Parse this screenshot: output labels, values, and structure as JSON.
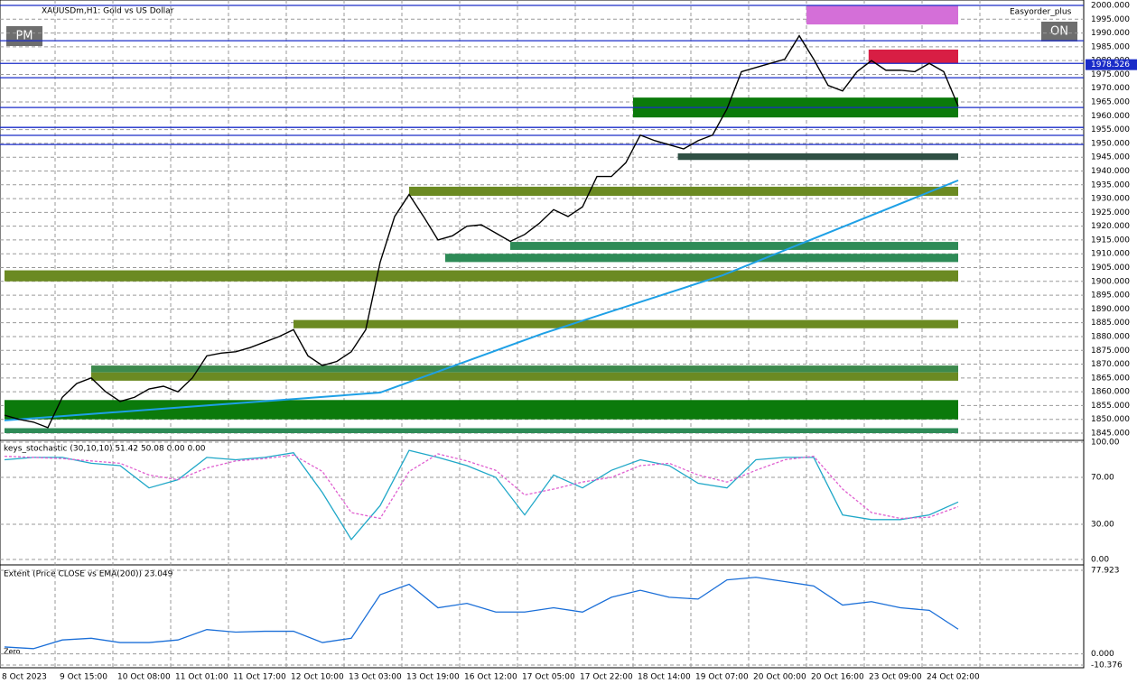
{
  "header": {
    "symbol": "XAUUSDm,H1:  Gold vs US Dollar",
    "indicator": "Easyorder_plus",
    "buttons": [
      "PM",
      "ON"
    ],
    "zero_label": "Zero"
  },
  "time_axis_labels": [
    "8 Oct 2023",
    "9 Oct 15:00",
    "10 Oct 08:00",
    "11 Oct 01:00",
    "11 Oct 17:00",
    "12 Oct 10:00",
    "13 Oct 03:00",
    "13 Oct 19:00",
    "16 Oct 12:00",
    "17 Oct 05:00",
    "17 Oct 22:00",
    "18 Oct 14:00",
    "19 Oct 07:00",
    "20 Oct 00:00",
    "20 Oct 16:00",
    "23 Oct 09:00",
    "24 Oct 02:00"
  ],
  "chart_data": [
    {
      "type": "line",
      "title": "XAUUSDm,H1",
      "grid": true,
      "ylim": [
        1845,
        2000
      ],
      "yticks": [
        {
          "value": 2000,
          "label": "2000.000"
        },
        {
          "value": 1995,
          "label": "1995.000"
        },
        {
          "value": 1990,
          "label": "1990.000"
        },
        {
          "value": 1985,
          "label": "1985.000"
        },
        {
          "value": 1980,
          "label": "1980.000"
        },
        {
          "value": 1975,
          "label": "1975.000"
        },
        {
          "value": 1970,
          "label": "1970.000"
        },
        {
          "value": 1965,
          "label": "1965.000"
        },
        {
          "value": 1960,
          "label": "1960.000"
        },
        {
          "value": 1955,
          "label": "1955.000"
        },
        {
          "value": 1950,
          "label": "1950.000"
        },
        {
          "value": 1945,
          "label": "1945.000"
        },
        {
          "value": 1940,
          "label": "1940.000"
        },
        {
          "value": 1935,
          "label": "1935.000"
        },
        {
          "value": 1930,
          "label": "1930.000"
        },
        {
          "value": 1925,
          "label": "1925.000"
        },
        {
          "value": 1920,
          "label": "1920.000"
        },
        {
          "value": 1915,
          "label": "1915.000"
        },
        {
          "value": 1910,
          "label": "1910.000"
        },
        {
          "value": 1905,
          "label": "1905.000"
        },
        {
          "value": 1900,
          "label": "1900.000"
        },
        {
          "value": 1895,
          "label": "1895.000"
        },
        {
          "value": 1890,
          "label": "1890.000"
        },
        {
          "value": 1885,
          "label": "1885.000"
        },
        {
          "value": 1880,
          "label": "1880.000"
        },
        {
          "value": 1875,
          "label": "1875.000"
        },
        {
          "value": 1870,
          "label": "1870.000"
        },
        {
          "value": 1865,
          "label": "1865.000"
        },
        {
          "value": 1860,
          "label": "1860.000"
        },
        {
          "value": 1855,
          "label": "1855.000"
        },
        {
          "value": 1850,
          "label": "1850.000"
        },
        {
          "value": 1845,
          "label": "1845.000"
        }
      ],
      "current_price": 1978.526,
      "hlines": [
        2000,
        1987.2,
        1979,
        1973.8,
        1963,
        1955.8,
        1952.9,
        1949.6
      ],
      "series": [
        {
          "color": "#000000",
          "values": [
            1851.5,
            1850,
            1849,
            1847,
            1858,
            1863,
            1865,
            1860,
            1856.5,
            1858,
            1861,
            1862,
            1860,
            1865,
            1873,
            1874,
            1874.5,
            1876,
            1878,
            1880,
            1882.5,
            1873,
            1869.5,
            1871,
            1874.5,
            1882.5,
            1907,
            1923.5,
            1931.5,
            1923.5,
            1915,
            1916.5,
            1920,
            1920.5,
            1917.5,
            1914.5,
            1917,
            1921,
            1926,
            1923.5,
            1927,
            1938,
            1938,
            1943,
            1953,
            1951,
            1949.5,
            1948,
            1951,
            1953,
            1962.5,
            1976,
            1977.5,
            1979,
            1980.5,
            1989,
            1980.5,
            1971,
            1969,
            1976,
            1980,
            1976.5,
            1976.5,
            1976,
            1979,
            1976,
            1963.5
          ]
        }
      ],
      "ema": {
        "color": "#1ea0e6",
        "x": [
          0,
          26,
          37.2,
          49.7,
          66
        ],
        "values": [
          1849.6,
          1859.7,
          1881,
          1902.2,
          1936.6
        ]
      },
      "zones": [
        {
          "start": 55.5,
          "lo": 1993.1,
          "hi": 2000,
          "color": "#d46fd8"
        },
        {
          "start": 59.8,
          "lo": 1979,
          "hi": 1984,
          "color": "#d81e44"
        },
        {
          "start": 43.5,
          "lo": 1959.4,
          "hi": 1966.6,
          "color": "#0b7a0b"
        },
        {
          "start": 46.6,
          "lo": 1944,
          "hi": 1946.4,
          "color": "#2f5044"
        },
        {
          "start": 28,
          "lo": 1931,
          "hi": 1934.3,
          "color": "#6b8a22"
        },
        {
          "start": 35,
          "lo": 1911.4,
          "hi": 1914.3,
          "color": "#2e8b57"
        },
        {
          "start": 30.5,
          "lo": 1907,
          "hi": 1910,
          "color": "#2e8b57"
        },
        {
          "start": 0,
          "lo": 1900,
          "hi": 1904,
          "color": "#6b8a22"
        },
        {
          "start": 20,
          "lo": 1883,
          "hi": 1886,
          "color": "#6b8a22"
        },
        {
          "start": 6,
          "lo": 1867,
          "hi": 1869.5,
          "color": "#3d8a4d"
        },
        {
          "start": 6,
          "lo": 1864,
          "hi": 1867,
          "color": "#6b8a22"
        },
        {
          "start": 0,
          "lo": 1850,
          "hi": 1857,
          "color": "#0b7a0b"
        },
        {
          "start": 0,
          "lo": 1845,
          "hi": 1846.8,
          "color": "#2e8b57"
        }
      ]
    },
    {
      "type": "line",
      "title": "keys_stochastic (30,10,10) 51.42 50.08 0.00 0.00",
      "ylim": [
        0,
        100
      ],
      "yticks": [
        {
          "value": 100,
          "label": "100.00"
        },
        {
          "value": 70,
          "label": "70.00"
        },
        {
          "value": 30,
          "label": "30.00"
        },
        {
          "value": 0,
          "label": "0.00"
        }
      ],
      "series": [
        {
          "color": "#20a8c8",
          "values": [
            85,
            87,
            87,
            82,
            80,
            61,
            68,
            87,
            85,
            87,
            91,
            57,
            17,
            46,
            93,
            87,
            80,
            70,
            38,
            72,
            61,
            76,
            85,
            80,
            65,
            61,
            85,
            87,
            87,
            38,
            34,
            34,
            38,
            49
          ]
        },
        {
          "color": "#e060d0",
          "values": [
            88,
            87,
            86,
            84,
            82,
            72,
            68,
            78,
            84,
            86,
            89,
            75,
            40,
            35,
            75,
            90,
            84,
            76,
            55,
            60,
            66,
            70,
            80,
            82,
            72,
            66,
            76,
            85,
            88,
            60,
            40,
            35,
            36,
            45
          ]
        }
      ]
    },
    {
      "type": "line",
      "title": "Extent (Price CLOSE vs EMA(200)) 23.049",
      "ylim": [
        -10.376,
        77.923
      ],
      "yticks": [
        77.923,
        {
          "value": 0,
          "label": "0.000"
        },
        -10.376
      ],
      "series": [
        {
          "color": "#1b6fd8",
          "values": [
            6.5,
            4.9,
            13,
            14.6,
            10.6,
            10.6,
            13,
            22.7,
            20.3,
            21.1,
            21.1,
            10.6,
            14.6,
            55.2,
            64.9,
            43,
            47.1,
            39,
            39,
            43,
            39,
            52.8,
            59.3,
            52.8,
            51.1,
            69,
            71.4,
            67.4,
            63.3,
            45.5,
            48.7,
            43,
            40.6,
            23.049
          ]
        }
      ]
    }
  ]
}
